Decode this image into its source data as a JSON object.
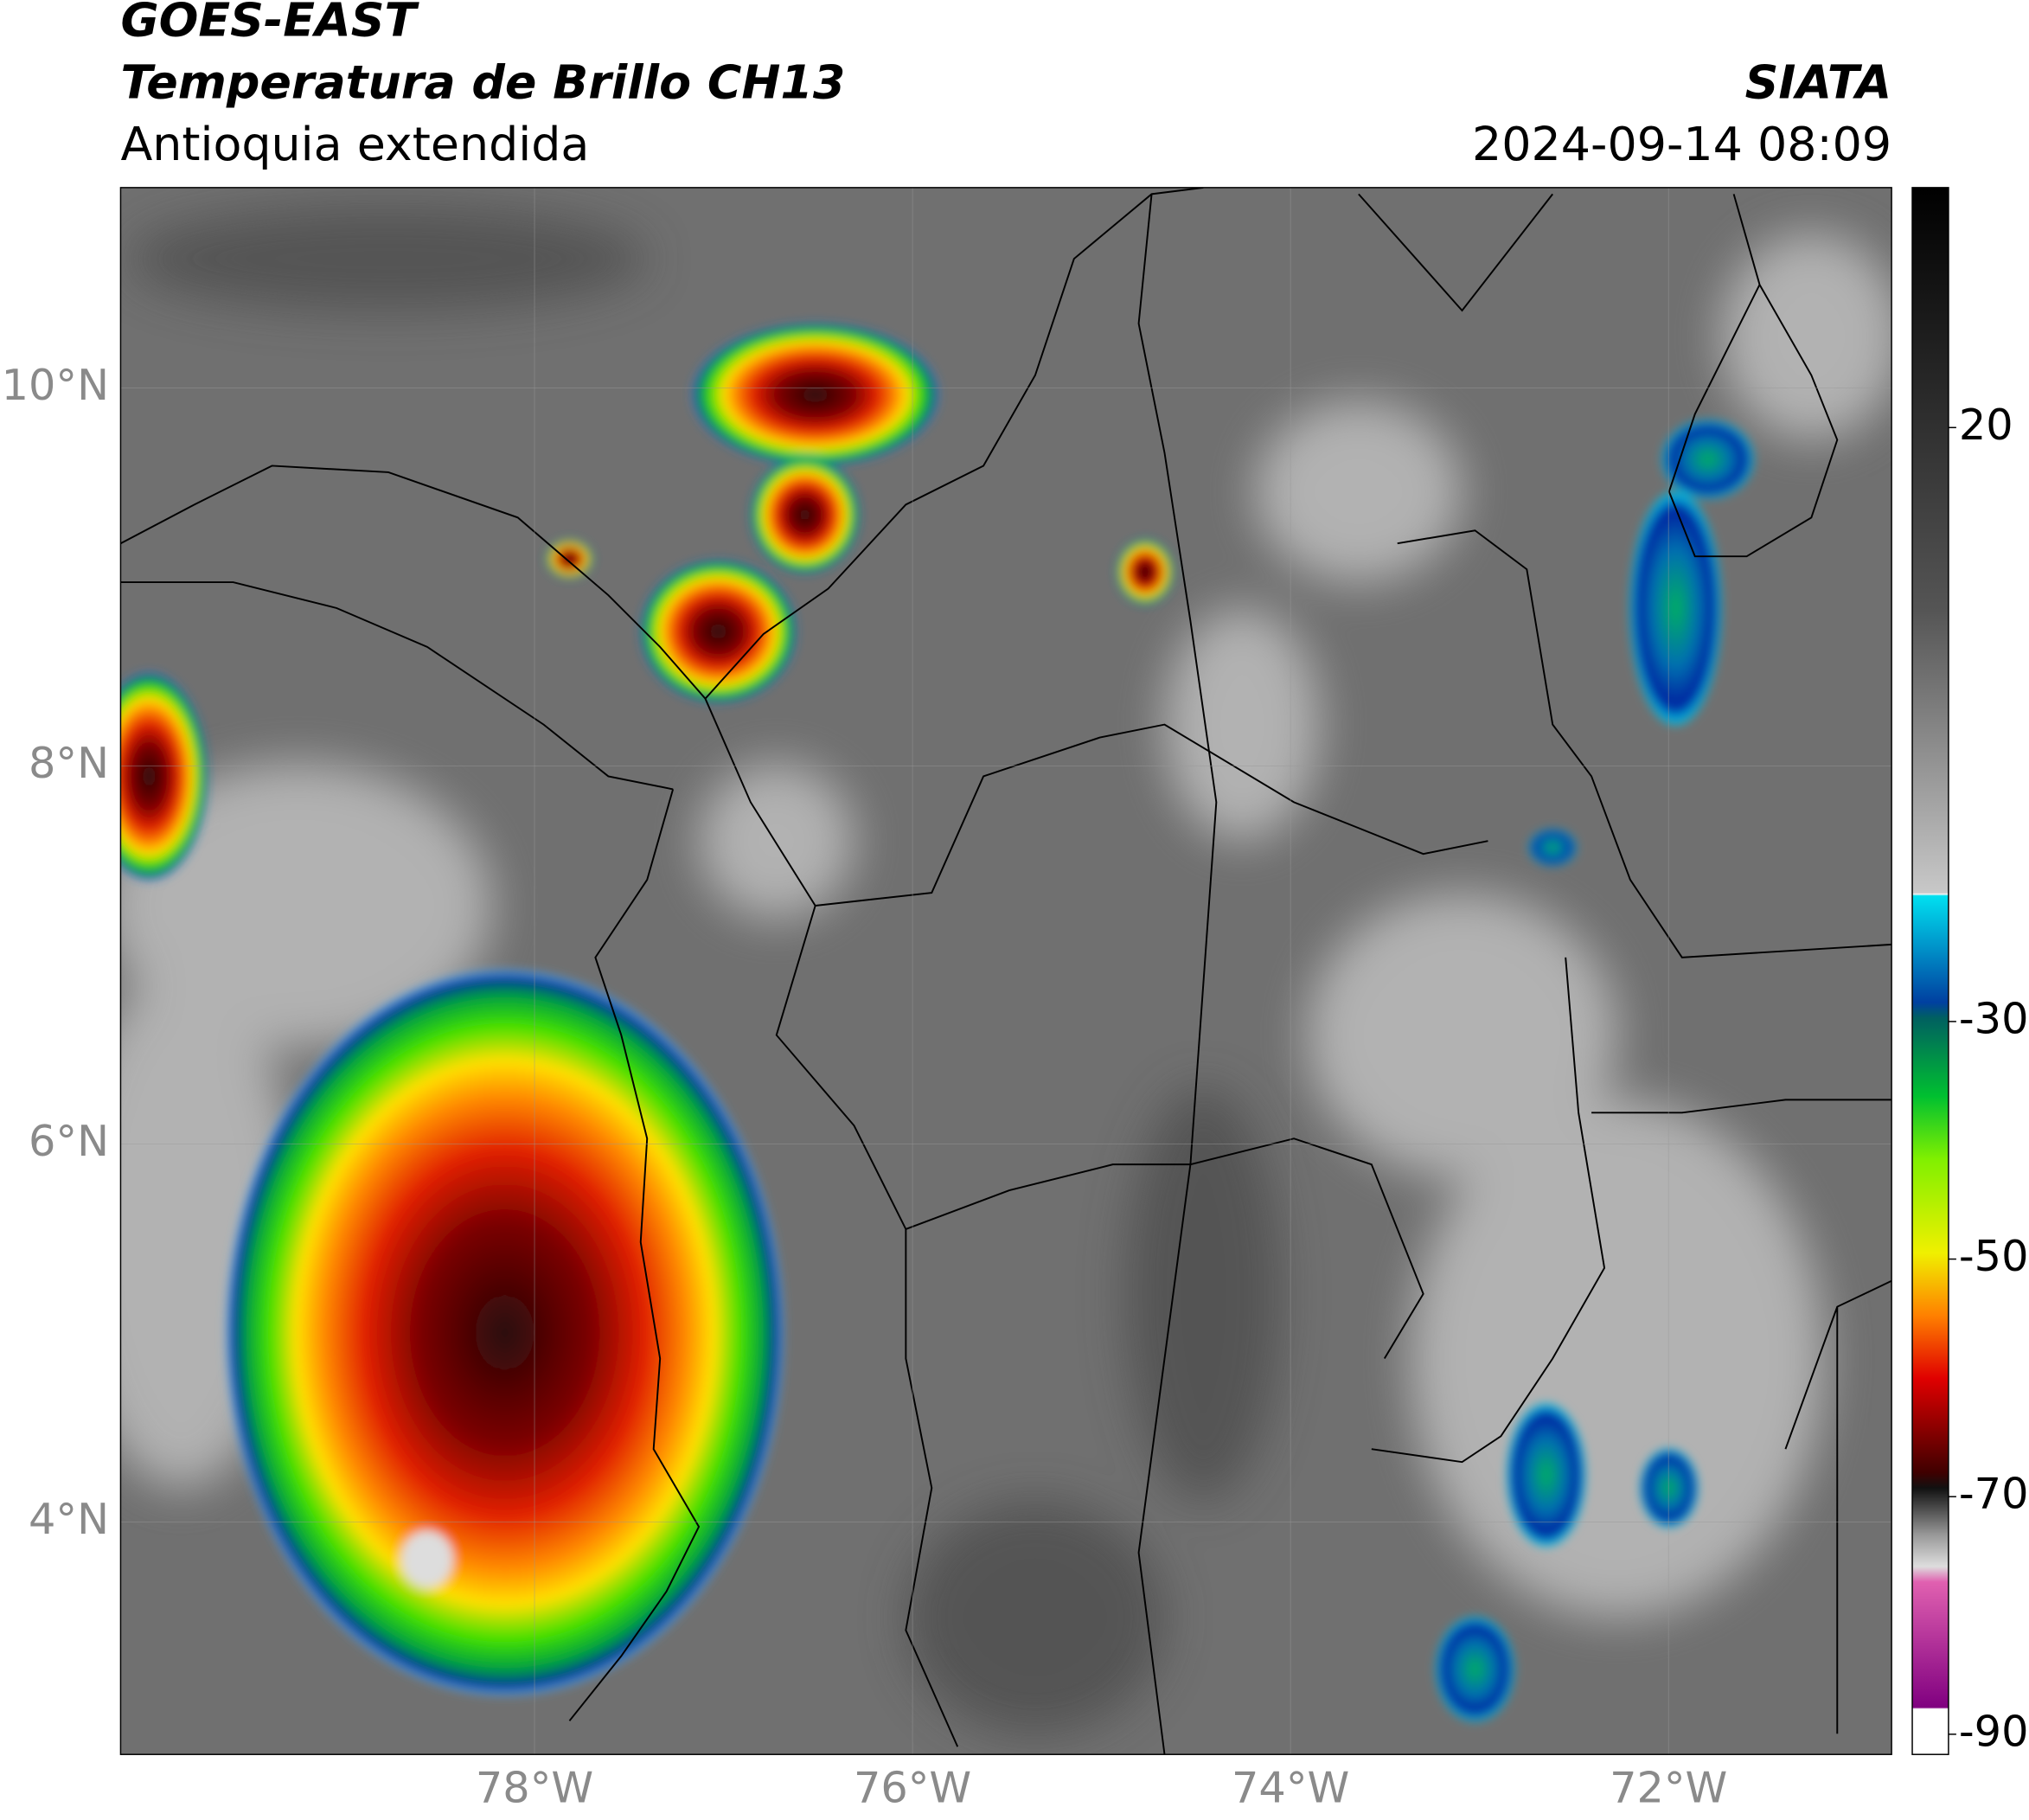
{
  "header": {
    "title": "GOES-EAST",
    "subtitle": "Temperatura de Brillo CH13",
    "region": "Antioquia extendida",
    "source": "SIATA",
    "timestamp": "2024-09-14 08:09"
  },
  "map": {
    "lon_range": [
      -80.19,
      -70.82
    ],
    "lat_range": [
      2.77,
      11.06
    ],
    "lon_ticks": [
      {
        "value": -78,
        "label": "78°W"
      },
      {
        "value": -76,
        "label": "76°W"
      },
      {
        "value": -74,
        "label": "74°W"
      },
      {
        "value": -72,
        "label": "72°W"
      }
    ],
    "lat_ticks": [
      {
        "value": 10,
        "label": "10°N"
      },
      {
        "value": 8,
        "label": "8°N"
      },
      {
        "value": 6,
        "label": "6°N"
      },
      {
        "value": 4,
        "label": "4°N"
      }
    ]
  },
  "colorbar": {
    "range": [
      -91.7,
      40.2
    ],
    "ticks": [
      20,
      -30,
      -50,
      -70,
      -90
    ]
  }
}
